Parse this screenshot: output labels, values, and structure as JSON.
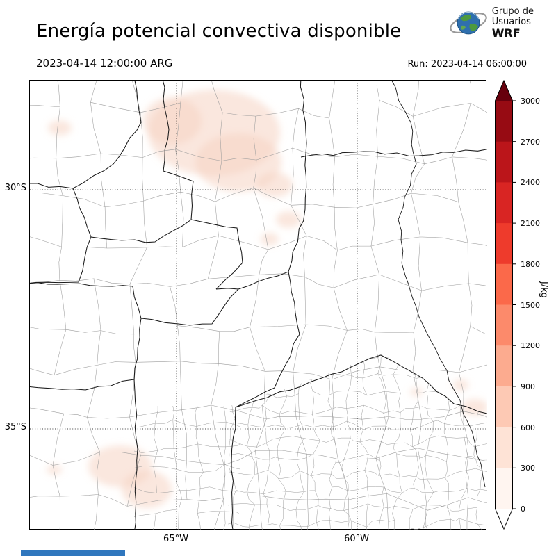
{
  "header": {
    "title": "Energía potencial convectiva disponible",
    "valid_time": "2023-04-14 12:00:00 ARG",
    "run_time": "Run: 2023-04-14 06:00:00",
    "logo": {
      "line1": "Grupo de",
      "line2": "Usuarios",
      "line3": "WRF"
    }
  },
  "map": {
    "x_tick_labels": [
      "65°W",
      "60°W"
    ],
    "y_tick_labels": [
      "30°S",
      "35°S"
    ],
    "department_boundary_color": "#9c9c9c",
    "province_boundary_color": "#1a1a1a",
    "low_cape_shading_color": "#f6d3c2"
  },
  "colorbar": {
    "unit": "J/kg",
    "tick_labels_top_to_bottom": [
      "3000",
      "2700",
      "2400",
      "2100",
      "1800",
      "1500",
      "1200",
      "900",
      "600",
      "300",
      "0"
    ],
    "segment_colors_top_to_bottom": [
      "#970b13",
      "#bb151a",
      "#d92523",
      "#ee3b2c",
      "#fb694a",
      "#fc8a6b",
      "#fcab8f",
      "#fdc9b4",
      "#fee3d6",
      "#fff5f0"
    ],
    "over_color": "#67000d",
    "under_color": "#ffffff"
  },
  "chart_data": {
    "type": "heatmap",
    "title": "Energía potencial convectiva disponible",
    "colorbar_unit": "J/kg",
    "colorbar_range": [
      0,
      3000
    ],
    "colorbar_tick_step": 300,
    "x_tick_labels": [
      "65°W",
      "60°W"
    ],
    "y_tick_labels": [
      "30°S",
      "35°S"
    ],
    "field_summary": "CAPE mostly near 0 J/kg across the domain; faint patches below ~300 J/kg over the north-center, a few spots near the eastern edge and the southwest"
  },
  "footer": {
    "bar_color": "#3077be"
  }
}
